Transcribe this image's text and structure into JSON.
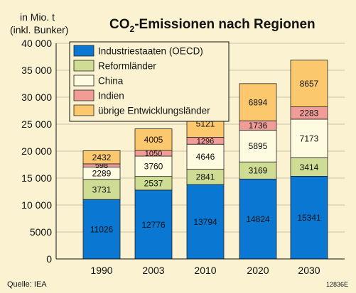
{
  "chart_data": {
    "type": "bar",
    "stacked": true,
    "title_main": "CO",
    "title_sub": "2",
    "title_rest": "-Emissionen nach Regionen",
    "ylabel_line1": "in Mio. t",
    "ylabel_line2": "(inkl. Bunker)",
    "ylim": [
      0,
      40000
    ],
    "yticks": [
      "0",
      "5000",
      "10 000",
      "15 000",
      "20 000",
      "25 000",
      "30 000",
      "35 000",
      "40 000"
    ],
    "ytick_values": [
      0,
      5000,
      10000,
      15000,
      20000,
      25000,
      30000,
      35000,
      40000
    ],
    "categories": [
      "1990",
      "2003",
      "2010",
      "2020",
      "2030"
    ],
    "series": [
      {
        "name": "Industriestaaten (OECD)",
        "color": "#0a78d2",
        "values": [
          11026,
          12776,
          13794,
          14824,
          15341
        ]
      },
      {
        "name": "Reformländer",
        "color": "#cfdc94",
        "values": [
          3731,
          2537,
          2841,
          3169,
          3414
        ]
      },
      {
        "name": "China",
        "color": "#fffbe0",
        "values": [
          2289,
          3760,
          4646,
          5895,
          7173
        ]
      },
      {
        "name": "Indien",
        "color": "#f29c98",
        "values": [
          598,
          1050,
          1296,
          1736,
          2283
        ]
      },
      {
        "name": "übrige Entwicklungsländer",
        "color": "#fbc86e",
        "values": [
          2432,
          4005,
          5121,
          6894,
          8657
        ]
      }
    ],
    "grid": true,
    "legend_placement": "top-left"
  },
  "source": "Quelle: IEA",
  "code": "12836E"
}
